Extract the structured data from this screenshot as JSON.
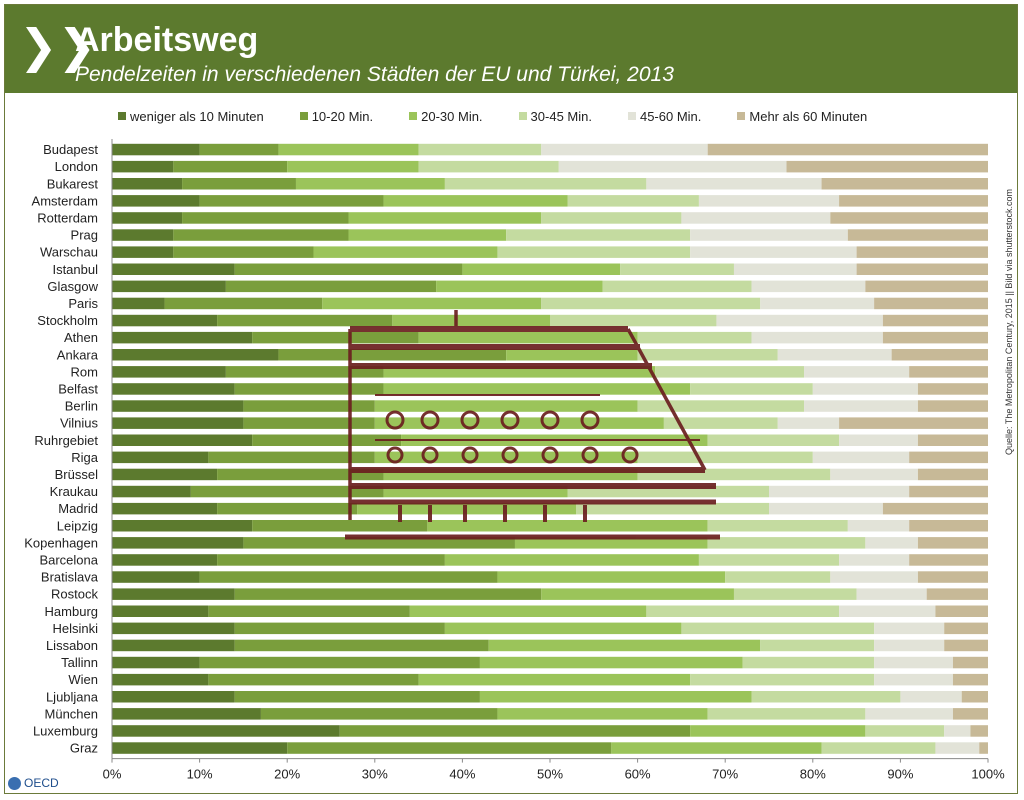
{
  "header": {
    "chevron_icon": "double-chevron-right-icon",
    "title": "Arbeitsweg",
    "subtitle": "Pendelzeiten in verschiedenen Städten der EU und Türkei, 2013"
  },
  "source": "Quelle: The Metropolitan Century, 2015 || Bild via shutterstock.com",
  "logo": "OECD",
  "colors": {
    "header": "#5c7a2e",
    "series": [
      "#5c7a2e",
      "#7a9e3c",
      "#9bc45a",
      "#c4dba0",
      "#e2e3d8",
      "#c7b997"
    ],
    "watermark": "#6b1f1f"
  },
  "chart_data": {
    "type": "bar",
    "orientation": "horizontal",
    "stacked": true,
    "categories": [
      "Budapest",
      "London",
      "Bukarest",
      "Amsterdam",
      "Rotterdam",
      "Prag",
      "Warschau",
      "Istanbul",
      "Glasgow",
      "Paris",
      "Stockholm",
      "Athen",
      "Ankara",
      "Rom",
      "Belfast",
      "Berlin",
      "Vilnius",
      "Ruhrgebiet",
      "Riga",
      "Brüssel",
      "Kraukau",
      "Madrid",
      "Leipzig",
      "Kopenhagen",
      "Barcelona",
      "Bratislava",
      "Rostock",
      "Hamburg",
      "Helsinki",
      "Lissabon",
      "Tallinn",
      "Wien",
      "Ljubljana",
      "München",
      "Luxemburg",
      "Graz"
    ],
    "series": [
      {
        "name": "weniger als 10 Minuten",
        "values": [
          10,
          7,
          8,
          10,
          8,
          7,
          7,
          14,
          13,
          6,
          12,
          16,
          19,
          13,
          14,
          15,
          15,
          16,
          11,
          12,
          9,
          12,
          16,
          15,
          12,
          10,
          14,
          11,
          14,
          14,
          10,
          11,
          14,
          17,
          26,
          20
        ]
      },
      {
        "name": "10-20 Min.",
        "values": [
          9,
          13,
          13,
          21,
          19,
          20,
          16,
          26,
          24,
          18,
          20,
          19,
          26,
          18,
          17,
          15,
          15,
          17,
          19,
          19,
          22,
          16,
          20,
          31,
          26,
          34,
          35,
          23,
          24,
          29,
          32,
          24,
          28,
          27,
          40,
          37
        ]
      },
      {
        "name": "20-30 Min.",
        "values": [
          16,
          15,
          17,
          21,
          22,
          18,
          21,
          18,
          19,
          25,
          18,
          25,
          15,
          31,
          35,
          30,
          33,
          35,
          30,
          29,
          21,
          25,
          32,
          22,
          29,
          26,
          22,
          27,
          27,
          31,
          30,
          31,
          31,
          24,
          20,
          24
        ]
      },
      {
        "name": "30-45 Min.",
        "values": [
          14,
          16,
          23,
          15,
          16,
          21,
          22,
          13,
          17,
          25,
          19,
          13,
          16,
          17,
          14,
          19,
          13,
          15,
          20,
          22,
          23,
          22,
          16,
          18,
          16,
          12,
          14,
          22,
          22,
          13,
          15,
          21,
          17,
          18,
          9,
          13
        ]
      },
      {
        "name": "45-60 Min.",
        "values": [
          19,
          26,
          20,
          16,
          17,
          18,
          19,
          14,
          13,
          13,
          19,
          15,
          13,
          12,
          12,
          13,
          7,
          9,
          11,
          10,
          16,
          13,
          7,
          6,
          8,
          10,
          8,
          11,
          8,
          8,
          9,
          9,
          7,
          10,
          3,
          5
        ]
      },
      {
        "name": "Mehr als 60 Minuten",
        "values": [
          32,
          23,
          19,
          17,
          18,
          16,
          15,
          15,
          14,
          13,
          12,
          12,
          11,
          9,
          8,
          8,
          17,
          8,
          9,
          8,
          9,
          12,
          9,
          8,
          9,
          8,
          7,
          6,
          5,
          5,
          4,
          4,
          3,
          4,
          2,
          1
        ]
      }
    ],
    "xlim": [
      0,
      100
    ],
    "xticks": [
      "0%",
      "10%",
      "20%",
      "30%",
      "40%",
      "50%",
      "60%",
      "70%",
      "80%",
      "90%",
      "100%"
    ],
    "xlabel": "",
    "ylabel": "",
    "grid": false,
    "legend": "top"
  }
}
